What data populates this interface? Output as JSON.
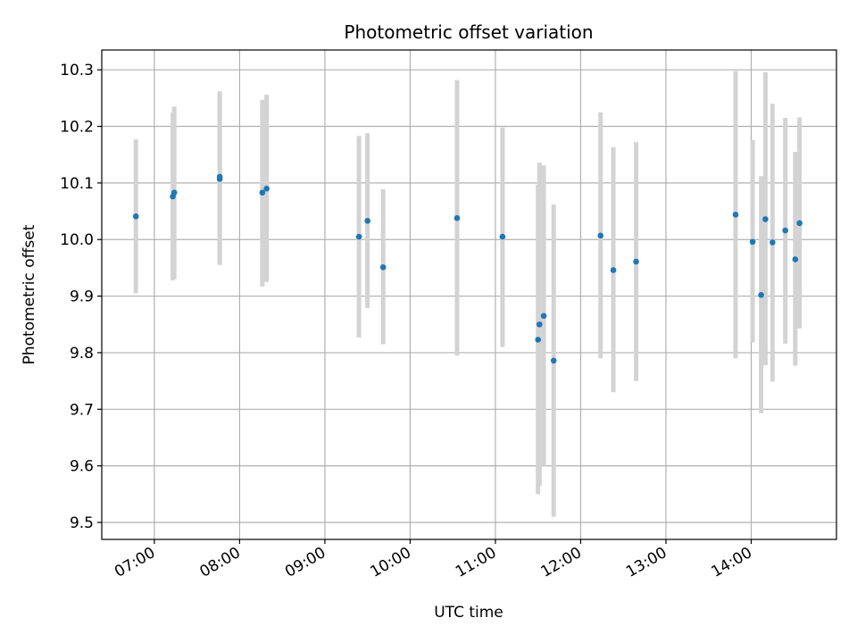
{
  "chart_data": {
    "type": "scatter",
    "title": "Photometric offset variation",
    "xlabel": "UTC time",
    "ylabel": "Photometric offset",
    "xlim": [
      "06:23",
      "15:00"
    ],
    "ylim": [
      9.47,
      10.335
    ],
    "x_ticks": [
      "07:00",
      "08:00",
      "09:00",
      "10:00",
      "11:00",
      "12:00",
      "13:00",
      "14:00"
    ],
    "y_ticks": [
      "9.5",
      "9.6",
      "9.7",
      "9.8",
      "9.9",
      "10.0",
      "10.1",
      "10.2",
      "10.3"
    ],
    "grid": true,
    "colors": {
      "points": "#1f77b4",
      "error_bars": "#d3d3d3",
      "grid": "#b0b0b0"
    },
    "series": [
      {
        "points": [
          {
            "x": "06:47",
            "y": 10.041,
            "yerr_low": 9.905,
            "yerr_high": 10.177
          },
          {
            "x": "07:13",
            "y": 10.076,
            "yerr_low": 9.928,
            "yerr_high": 10.225
          },
          {
            "x": "07:14",
            "y": 10.083,
            "yerr_low": 9.93,
            "yerr_high": 10.235
          },
          {
            "x": "07:46",
            "y": 10.107,
            "yerr_low": 9.955,
            "yerr_high": 10.26
          },
          {
            "x": "07:46",
            "y": 10.111,
            "yerr_low": 9.96,
            "yerr_high": 10.262
          },
          {
            "x": "08:16",
            "y": 10.083,
            "yerr_low": 9.917,
            "yerr_high": 10.247
          },
          {
            "x": "08:19",
            "y": 10.09,
            "yerr_low": 9.925,
            "yerr_high": 10.256
          },
          {
            "x": "09:24",
            "y": 10.005,
            "yerr_low": 9.827,
            "yerr_high": 10.183
          },
          {
            "x": "09:30",
            "y": 10.033,
            "yerr_low": 9.879,
            "yerr_high": 10.188
          },
          {
            "x": "09:41",
            "y": 9.951,
            "yerr_low": 9.815,
            "yerr_high": 10.089
          },
          {
            "x": "10:33",
            "y": 10.038,
            "yerr_low": 9.795,
            "yerr_high": 10.282
          },
          {
            "x": "11:05",
            "y": 10.005,
            "yerr_low": 9.81,
            "yerr_high": 10.198
          },
          {
            "x": "11:30",
            "y": 9.823,
            "yerr_low": 9.55,
            "yerr_high": 10.097
          },
          {
            "x": "11:31",
            "y": 9.85,
            "yerr_low": 9.565,
            "yerr_high": 10.136
          },
          {
            "x": "11:34",
            "y": 9.865,
            "yerr_low": 9.6,
            "yerr_high": 10.131
          },
          {
            "x": "11:41",
            "y": 9.786,
            "yerr_low": 9.51,
            "yerr_high": 10.062
          },
          {
            "x": "12:14",
            "y": 10.007,
            "yerr_low": 9.79,
            "yerr_high": 10.225
          },
          {
            "x": "12:23",
            "y": 9.946,
            "yerr_low": 9.73,
            "yerr_high": 10.163
          },
          {
            "x": "12:39",
            "y": 9.961,
            "yerr_low": 9.75,
            "yerr_high": 10.172
          },
          {
            "x": "13:49",
            "y": 10.044,
            "yerr_low": 9.79,
            "yerr_high": 10.298
          },
          {
            "x": "14:01",
            "y": 9.996,
            "yerr_low": 9.818,
            "yerr_high": 10.176
          },
          {
            "x": "14:07",
            "y": 9.902,
            "yerr_low": 9.693,
            "yerr_high": 10.112
          },
          {
            "x": "14:10",
            "y": 10.036,
            "yerr_low": 9.778,
            "yerr_high": 10.296
          },
          {
            "x": "14:15",
            "y": 9.995,
            "yerr_low": 9.749,
            "yerr_high": 10.24
          },
          {
            "x": "14:24",
            "y": 10.016,
            "yerr_low": 9.816,
            "yerr_high": 10.215
          },
          {
            "x": "14:31",
            "y": 9.965,
            "yerr_low": 9.777,
            "yerr_high": 10.155
          },
          {
            "x": "14:34",
            "y": 10.029,
            "yerr_low": 9.843,
            "yerr_high": 10.216
          }
        ]
      }
    ]
  }
}
